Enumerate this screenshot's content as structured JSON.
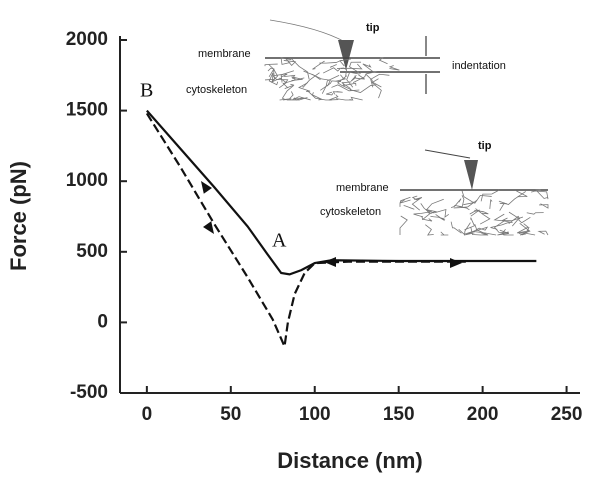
{
  "chart_data": {
    "type": "line",
    "xlabel": "Distance (nm)",
    "ylabel": "Force (pN)",
    "xlim": [
      -16,
      258
    ],
    "ylim": [
      -500,
      2000
    ],
    "xticks": [
      0,
      50,
      100,
      150,
      200,
      250
    ],
    "yticks": [
      -500,
      0,
      500,
      1000,
      1500,
      2000
    ],
    "series": [
      {
        "color": "#111111",
        "style": "solid",
        "x": [
          0,
          20,
          40,
          60,
          72,
          80,
          85,
          92,
          100,
          110,
          150,
          200,
          232
        ],
        "values": [
          1500,
          1230,
          960,
          680,
          480,
          350,
          340,
          370,
          420,
          440,
          435,
          435,
          435
        ]
      },
      {
        "color": "#111111",
        "style": "dashed",
        "x": [
          0,
          20,
          40,
          60,
          75,
          82,
          84,
          88,
          94,
          100,
          120,
          190
        ],
        "values": [
          1480,
          1100,
          700,
          320,
          20,
          -170,
          0,
          200,
          350,
          420,
          430,
          430
        ]
      }
    ],
    "annotations": [
      "B",
      "A",
      "tip",
      "membrane",
      "cytoskeleton",
      "indentation",
      "tip",
      "membrane",
      "cytoskeleton"
    ]
  }
}
